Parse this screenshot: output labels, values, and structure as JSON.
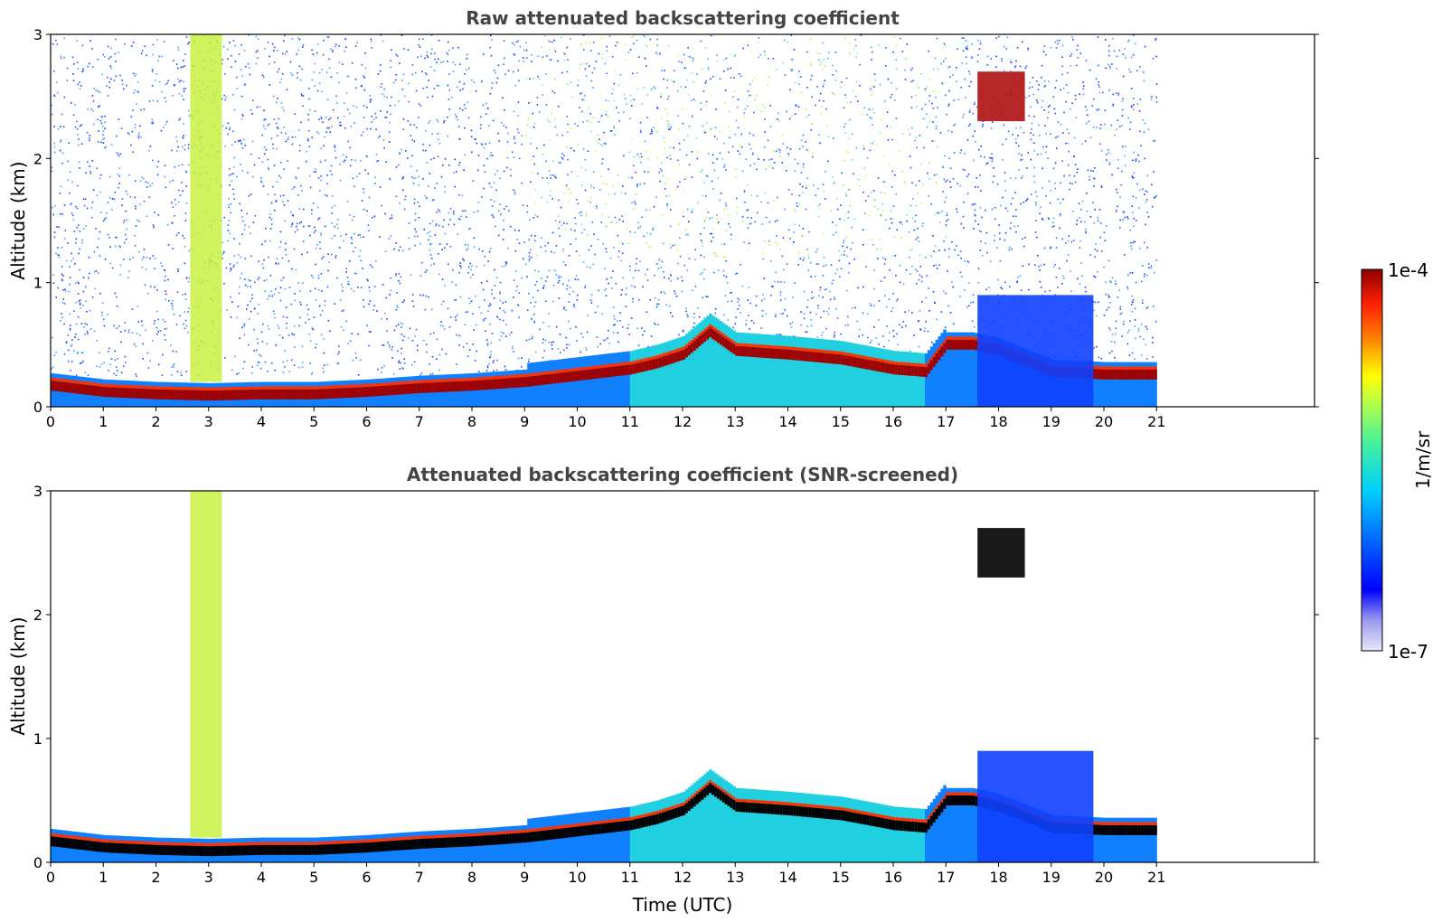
{
  "chart_data": [
    {
      "type": "heatmap",
      "title": "Raw attenuated backscattering coefficient",
      "xlabel": "",
      "ylabel": "Altitude (km)",
      "xlim": [
        0,
        24
      ],
      "ylim": [
        0,
        3
      ],
      "xticks": [
        "0",
        "1",
        "2",
        "3",
        "4",
        "5",
        "6",
        "7",
        "8",
        "9",
        "10",
        "11",
        "12",
        "13",
        "14",
        "15",
        "16",
        "17",
        "18",
        "19",
        "20",
        "21"
      ],
      "yticks": [
        "0",
        "1",
        "2",
        "3"
      ],
      "data_end_time": 21,
      "boundary_layer_top_km": [
        [
          0,
          0.17
        ],
        [
          1,
          0.12
        ],
        [
          2,
          0.1
        ],
        [
          3,
          0.09
        ],
        [
          4,
          0.1
        ],
        [
          5,
          0.1
        ],
        [
          6,
          0.12
        ],
        [
          7,
          0.15
        ],
        [
          8,
          0.17
        ],
        [
          9,
          0.2
        ],
        [
          10,
          0.25
        ],
        [
          11,
          0.3
        ],
        [
          11.5,
          0.35
        ],
        [
          12,
          0.42
        ],
        [
          12.5,
          0.6
        ],
        [
          13,
          0.45
        ],
        [
          14,
          0.42
        ],
        [
          15,
          0.38
        ],
        [
          16,
          0.3
        ],
        [
          16.6,
          0.28
        ],
        [
          17,
          0.5
        ],
        [
          17.5,
          0.5
        ],
        [
          18,
          0.45
        ],
        [
          19,
          0.28
        ],
        [
          20,
          0.26
        ],
        [
          21,
          0.26
        ]
      ],
      "features": [
        {
          "label": "high-signal column",
          "time_range": [
            2.65,
            3.25
          ],
          "altitude_km": [
            0.2,
            3.0
          ]
        },
        {
          "label": "elevated layer",
          "time_range": [
            17.6,
            18.5
          ],
          "altitude_km": [
            2.3,
            2.7
          ]
        },
        {
          "label": "near-surface broad layer",
          "time_range": [
            17.6,
            19.8
          ],
          "altitude_km": [
            0.0,
            0.9
          ]
        }
      ]
    },
    {
      "type": "heatmap",
      "title": "Attenuated backscattering coefficient (SNR-screened)",
      "xlabel": "Time (UTC)",
      "ylabel": "Altitude (km)",
      "xlim": [
        0,
        24
      ],
      "ylim": [
        0,
        3
      ],
      "xticks": [
        "0",
        "1",
        "2",
        "3",
        "4",
        "5",
        "6",
        "7",
        "8",
        "9",
        "10",
        "11",
        "12",
        "13",
        "14",
        "15",
        "16",
        "17",
        "18",
        "19",
        "20",
        "21"
      ],
      "yticks": [
        "0",
        "1",
        "2",
        "3"
      ],
      "data_end_time": 21
    }
  ],
  "colorbar": {
    "label": "1/m/sr",
    "max_label": "1e-4",
    "min_label": "1e-7",
    "scale": "log",
    "colormap": [
      "#e8e8f8",
      "#b8b8f0",
      "#8888f0",
      "#0000ff",
      "#0040ff",
      "#0090ff",
      "#00d0ff",
      "#20f0d0",
      "#80ff80",
      "#d0ff30",
      "#ffff00",
      "#ffc000",
      "#ff7000",
      "#ff2000",
      "#d00000",
      "#8b0000"
    ]
  },
  "colors": {
    "clear_air": "#ffffff",
    "background_noise": "#1a3cff",
    "boundary_layer": "#8b0000",
    "cloud_top_screen": "#000000"
  }
}
